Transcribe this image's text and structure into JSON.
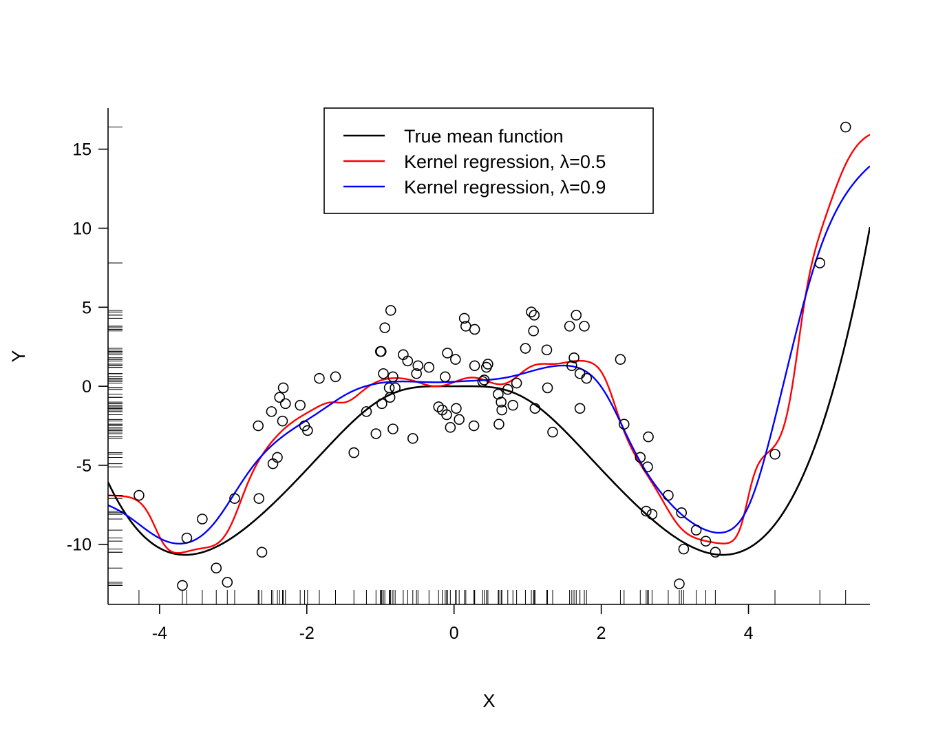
{
  "chart_data": {
    "type": "scatter",
    "title": "",
    "xlabel": "X",
    "ylabel": "Y",
    "xlim": [
      -4.7,
      5.65
    ],
    "ylim": [
      -13.8,
      17.6
    ],
    "xticks": [
      -4,
      -2,
      0,
      2,
      4
    ],
    "yticks": [
      -10,
      -5,
      0,
      5,
      10,
      15
    ],
    "legend": {
      "position": "top-center",
      "entries": [
        {
          "label": "True mean function",
          "color": "#000000"
        },
        {
          "label": "Kernel regression, λ=0.5",
          "color": "#ff0000"
        },
        {
          "label": "Kernel regression, λ=0.9",
          "color": "#0000ff"
        }
      ]
    },
    "rugs": {
      "x": true,
      "y": true
    },
    "points": [
      [
        -4.28,
        -6.9
      ],
      [
        -3.69,
        -12.6
      ],
      [
        -3.63,
        -9.6
      ],
      [
        -3.42,
        -8.4
      ],
      [
        -3.23,
        -11.5
      ],
      [
        -3.08,
        -12.4
      ],
      [
        -2.98,
        -7.1
      ],
      [
        -2.66,
        -2.5
      ],
      [
        -2.65,
        -7.1
      ],
      [
        -2.61,
        -10.5
      ],
      [
        -2.48,
        -1.6
      ],
      [
        -2.46,
        -4.9
      ],
      [
        -2.4,
        -4.5
      ],
      [
        -2.37,
        -0.7
      ],
      [
        -2.33,
        -2.2
      ],
      [
        -2.32,
        -0.1
      ],
      [
        -2.29,
        -1.1
      ],
      [
        -2.09,
        -1.2
      ],
      [
        -2.03,
        -2.5
      ],
      [
        -1.99,
        -2.8
      ],
      [
        -1.83,
        0.5
      ],
      [
        -1.61,
        0.6
      ],
      [
        -1.36,
        -4.2
      ],
      [
        -1.19,
        -1.6
      ],
      [
        -1.06,
        -3.0
      ],
      [
        -1.0,
        2.2
      ],
      [
        -0.99,
        2.2
      ],
      [
        -0.98,
        -1.1
      ],
      [
        -0.96,
        0.8
      ],
      [
        -0.94,
        3.7
      ],
      [
        -0.88,
        -0.1
      ],
      [
        -0.87,
        -0.7
      ],
      [
        -0.86,
        4.8
      ],
      [
        -0.83,
        0.6
      ],
      [
        -0.83,
        -2.7
      ],
      [
        -0.8,
        -0.1
      ],
      [
        -0.69,
        2.0
      ],
      [
        -0.63,
        1.6
      ],
      [
        -0.56,
        -3.3
      ],
      [
        -0.51,
        0.8
      ],
      [
        -0.49,
        1.3
      ],
      [
        -0.34,
        1.2
      ],
      [
        -0.21,
        -1.3
      ],
      [
        -0.16,
        -1.5
      ],
      [
        -0.12,
        0.6
      ],
      [
        -0.1,
        -1.8
      ],
      [
        -0.09,
        2.1
      ],
      [
        -0.05,
        -2.6
      ],
      [
        0.02,
        1.7
      ],
      [
        0.03,
        -1.4
      ],
      [
        0.07,
        -2.1
      ],
      [
        0.14,
        4.3
      ],
      [
        0.16,
        3.8
      ],
      [
        0.27,
        -2.5
      ],
      [
        0.28,
        1.3
      ],
      [
        0.28,
        3.6
      ],
      [
        0.39,
        0.3
      ],
      [
        0.41,
        0.4
      ],
      [
        0.44,
        1.2
      ],
      [
        0.46,
        1.4
      ],
      [
        0.6,
        -0.5
      ],
      [
        0.61,
        -2.4
      ],
      [
        0.64,
        -1.0
      ],
      [
        0.65,
        -1.5
      ],
      [
        0.73,
        -0.2
      ],
      [
        0.8,
        -1.2
      ],
      [
        0.85,
        0.2
      ],
      [
        0.97,
        2.4
      ],
      [
        1.05,
        4.7
      ],
      [
        1.08,
        3.5
      ],
      [
        1.09,
        4.5
      ],
      [
        1.1,
        -1.4
      ],
      [
        1.26,
        2.3
      ],
      [
        1.27,
        -0.1
      ],
      [
        1.34,
        -2.9
      ],
      [
        1.57,
        3.8
      ],
      [
        1.6,
        1.3
      ],
      [
        1.63,
        1.8
      ],
      [
        1.66,
        4.5
      ],
      [
        1.71,
        0.8
      ],
      [
        1.71,
        -1.4
      ],
      [
        1.77,
        3.8
      ],
      [
        1.8,
        0.5
      ],
      [
        2.26,
        1.7
      ],
      [
        2.31,
        -2.4
      ],
      [
        2.53,
        -4.5
      ],
      [
        2.61,
        -7.9
      ],
      [
        2.63,
        -5.1
      ],
      [
        2.64,
        -3.2
      ],
      [
        2.69,
        -8.1
      ],
      [
        2.91,
        -6.9
      ],
      [
        3.06,
        -12.5
      ],
      [
        3.09,
        -8.0
      ],
      [
        3.12,
        -10.3
      ],
      [
        3.29,
        -9.1
      ],
      [
        3.42,
        -9.8
      ],
      [
        3.55,
        -10.5
      ],
      [
        4.36,
        -4.3
      ],
      [
        4.97,
        7.8
      ],
      [
        5.32,
        16.4
      ]
    ]
  }
}
